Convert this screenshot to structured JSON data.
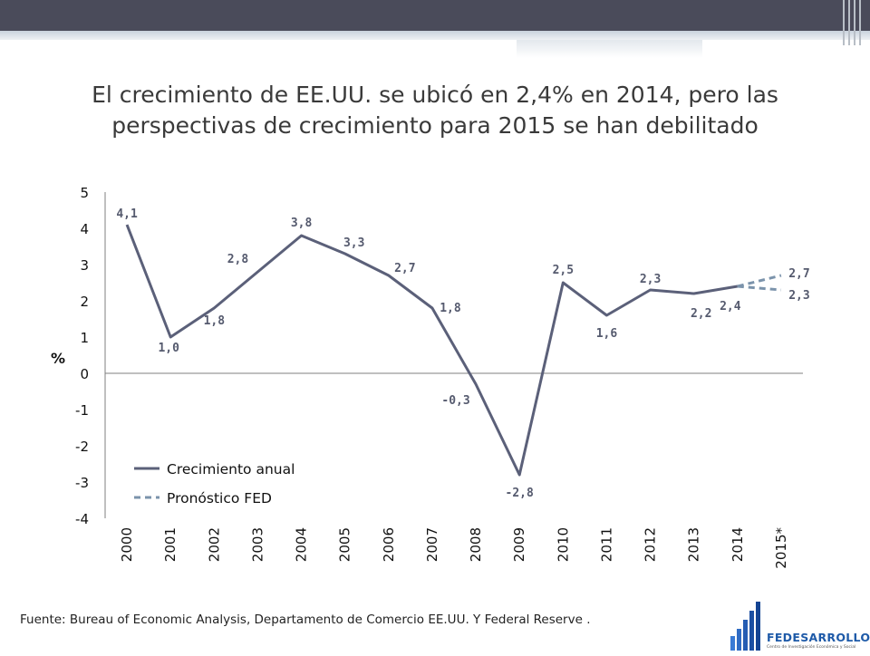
{
  "title": {
    "line1": "El crecimiento de EE.UU. se ubicó en 2,4% en 2014, pero las",
    "line2": "perspectivas de crecimiento para 2015 se han debilitado"
  },
  "source": "Fuente: Bureau  of Economic Analysis, Departamento de Comercio EE.UU. Y Federal Reserve .",
  "logo": {
    "name": "FEDESARROLLO",
    "subtitle": "Centro de Investigación Económica y Social"
  },
  "colors": {
    "line": "#5b6079",
    "forecast": "#7b93ab",
    "axis": "#7f7f7f"
  },
  "chart_data": {
    "type": "line",
    "title": "",
    "ylabel": "%",
    "xlabel": "",
    "ylim": [
      -4,
      5
    ],
    "yticks": [
      "5",
      "4",
      "3",
      "2",
      "1",
      "0",
      "-1",
      "-2",
      "-3",
      "-4"
    ],
    "yticks_values": [
      5,
      4,
      3,
      2,
      1,
      0,
      -1,
      -2,
      -3,
      -4
    ],
    "categories": [
      "2000",
      "2001",
      "2002",
      "2003",
      "2004",
      "2005",
      "2006",
      "2007",
      "2008",
      "2009",
      "2010",
      "2011",
      "2012",
      "2013",
      "2014",
      "2015*"
    ],
    "series": [
      {
        "name": "Crecimiento anual",
        "style": "solid",
        "values": [
          4.1,
          1.0,
          1.8,
          2.8,
          3.8,
          3.3,
          2.7,
          1.8,
          -0.3,
          -2.8,
          2.5,
          1.6,
          2.3,
          2.2,
          2.4,
          null
        ],
        "labels": [
          "4,1",
          "1,0",
          "1,8",
          "2,8",
          "3,8",
          "3,3",
          "2,7",
          "1,8",
          "-0,3",
          "-2,8",
          "2,5",
          "1,6",
          "2,3",
          "2,2",
          "2,4",
          ""
        ]
      },
      {
        "name": "Pronóstico FED",
        "style": "dashed",
        "branches": [
          {
            "values": [
              null,
              null,
              null,
              null,
              null,
              null,
              null,
              null,
              null,
              null,
              null,
              null,
              null,
              null,
              2.4,
              2.7
            ],
            "label": "2,7"
          },
          {
            "values": [
              null,
              null,
              null,
              null,
              null,
              null,
              null,
              null,
              null,
              null,
              null,
              null,
              null,
              null,
              2.4,
              2.3
            ],
            "label": "2,3"
          }
        ]
      }
    ],
    "legend": [
      {
        "name": "Crecimiento anual",
        "style": "solid"
      },
      {
        "name": "Pronóstico FED",
        "style": "dashed"
      }
    ],
    "legend_position": "bottom-left"
  }
}
